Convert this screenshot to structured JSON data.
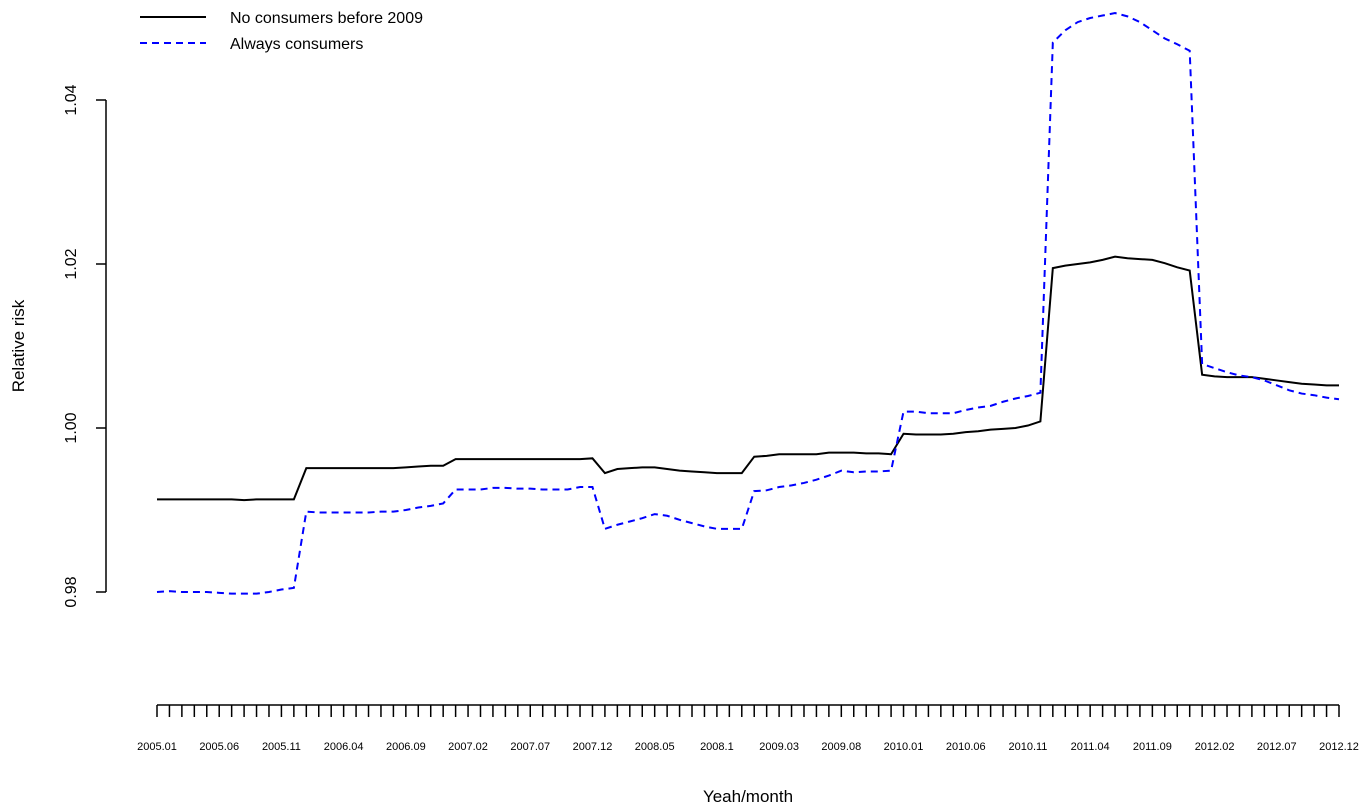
{
  "chart_data": {
    "type": "line",
    "xlabel": "Yeah/month",
    "ylabel": "Relative risk",
    "categories": [
      "2005.01",
      null,
      null,
      null,
      null,
      "2005.06",
      null,
      null,
      null,
      null,
      "2005.11",
      null,
      null,
      null,
      null,
      "2006.04",
      null,
      null,
      null,
      null,
      "2006.09",
      null,
      null,
      null,
      null,
      "2007.02",
      null,
      null,
      null,
      null,
      "2007.07",
      null,
      null,
      null,
      null,
      "2007.12",
      null,
      null,
      null,
      null,
      "2008.05",
      null,
      null,
      null,
      null,
      "2008.1",
      null,
      null,
      null,
      null,
      "2009.03",
      null,
      null,
      null,
      null,
      "2009.08",
      null,
      null,
      null,
      null,
      "2010.01",
      null,
      null,
      null,
      null,
      "2010.06",
      null,
      null,
      null,
      null,
      "2010.11",
      null,
      null,
      null,
      null,
      "2011.04",
      null,
      null,
      null,
      null,
      "2011.09",
      null,
      null,
      null,
      null,
      "2012.02",
      null,
      null,
      null,
      null,
      "2012.07",
      null,
      null,
      null,
      null,
      "2012.12"
    ],
    "series": [
      {
        "name": "No consumers before 2009",
        "color": "#000000",
        "dash": false,
        "values": [
          0.9913,
          0.9913,
          0.9913,
          0.9913,
          0.9913,
          0.9913,
          0.9913,
          0.9912,
          0.9913,
          0.9913,
          0.9913,
          0.9913,
          0.9951,
          0.9951,
          0.9951,
          0.9951,
          0.9951,
          0.9951,
          0.9951,
          0.9951,
          0.9952,
          0.9953,
          0.9954,
          0.9954,
          0.9962,
          0.9962,
          0.9962,
          0.9962,
          0.9962,
          0.9962,
          0.9962,
          0.9962,
          0.9962,
          0.9962,
          0.9962,
          0.9963,
          0.9945,
          0.995,
          0.9951,
          0.9952,
          0.9952,
          0.995,
          0.9948,
          0.9947,
          0.9946,
          0.9945,
          0.9945,
          0.9945,
          0.9965,
          0.9966,
          0.9968,
          0.9968,
          0.9968,
          0.9968,
          0.997,
          0.997,
          0.997,
          0.9969,
          0.9969,
          0.9968,
          0.9993,
          0.9992,
          0.9992,
          0.9992,
          0.9993,
          0.9995,
          0.9996,
          0.9998,
          0.9999,
          1.0,
          1.0003,
          1.0008,
          1.0195,
          1.0198,
          1.02,
          1.0202,
          1.0205,
          1.0209,
          1.0207,
          1.0206,
          1.0205,
          1.0201,
          1.0196,
          1.0192,
          1.0065,
          1.0063,
          1.0062,
          1.0062,
          1.0062,
          1.006,
          1.0058,
          1.0056,
          1.0054,
          1.0053,
          1.0052,
          1.0052
        ]
      },
      {
        "name": "Always consumers",
        "color": "#0000ff",
        "dash": true,
        "values": [
          0.98,
          0.9801,
          0.98,
          0.98,
          0.98,
          0.9799,
          0.9798,
          0.9798,
          0.9798,
          0.98,
          0.9803,
          0.9805,
          0.9898,
          0.9897,
          0.9897,
          0.9897,
          0.9897,
          0.9897,
          0.9898,
          0.9898,
          0.99,
          0.9903,
          0.9905,
          0.9908,
          0.9925,
          0.9925,
          0.9925,
          0.9927,
          0.9927,
          0.9926,
          0.9926,
          0.9925,
          0.9925,
          0.9925,
          0.9928,
          0.9928,
          0.9877,
          0.9882,
          0.9886,
          0.989,
          0.9895,
          0.9893,
          0.9888,
          0.9884,
          0.988,
          0.9877,
          0.9877,
          0.9877,
          0.9923,
          0.9924,
          0.9928,
          0.993,
          0.9933,
          0.9937,
          0.9942,
          0.9948,
          0.9946,
          0.9947,
          0.9947,
          0.9948,
          1.002,
          1.002,
          1.0018,
          1.0018,
          1.0018,
          1.0022,
          1.0025,
          1.0027,
          1.0032,
          1.0036,
          1.0039,
          1.0043,
          1.047,
          1.0485,
          1.0495,
          1.05,
          1.0503,
          1.0506,
          1.0502,
          1.0495,
          1.0485,
          1.0475,
          1.0468,
          1.046,
          1.0078,
          1.0073,
          1.0068,
          1.0064,
          1.0062,
          1.0058,
          1.0052,
          1.0046,
          1.0042,
          1.004,
          1.0037,
          1.0035
        ]
      }
    ],
    "ylim": [
      0.97,
      1.05
    ],
    "yticks": [
      0.98,
      {
        "value": 1,
        "label": "1.00"
      },
      1.02,
      1.04
    ],
    "legend": "top-left"
  }
}
